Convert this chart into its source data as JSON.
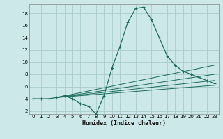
{
  "xlabel": "Humidex (Indice chaleur)",
  "bg_color": "#cce8e8",
  "line_color": "#1a6b5a",
  "grid_color": "#aacccc",
  "xlim": [
    -0.5,
    23.5
  ],
  "ylim": [
    1.5,
    19.5
  ],
  "yticks": [
    2,
    4,
    6,
    8,
    10,
    12,
    14,
    16,
    18
  ],
  "xticks": [
    0,
    1,
    2,
    3,
    4,
    5,
    6,
    7,
    8,
    9,
    10,
    11,
    12,
    13,
    14,
    15,
    16,
    17,
    18,
    19,
    20,
    21,
    22,
    23
  ],
  "main_x": [
    0,
    1,
    2,
    3,
    4,
    5,
    6,
    7,
    8,
    9,
    10,
    11,
    12,
    13,
    14,
    15,
    16,
    17,
    18,
    19,
    20,
    21,
    22,
    23
  ],
  "main_y": [
    4,
    4,
    4,
    4.2,
    4.5,
    4.0,
    3.2,
    2.8,
    1.5,
    4.5,
    9.0,
    12.5,
    16.5,
    18.8,
    19.0,
    17.0,
    14.0,
    11.0,
    9.5,
    8.5,
    8.0,
    7.5,
    7.0,
    6.5
  ],
  "trend_lines": [
    {
      "x": [
        3,
        23
      ],
      "y": [
        4.2,
        9.5
      ]
    },
    {
      "x": [
        3,
        23
      ],
      "y": [
        4.2,
        8.0
      ]
    },
    {
      "x": [
        3,
        23
      ],
      "y": [
        4.2,
        7.0
      ]
    },
    {
      "x": [
        3,
        23
      ],
      "y": [
        4.2,
        6.2
      ]
    }
  ]
}
